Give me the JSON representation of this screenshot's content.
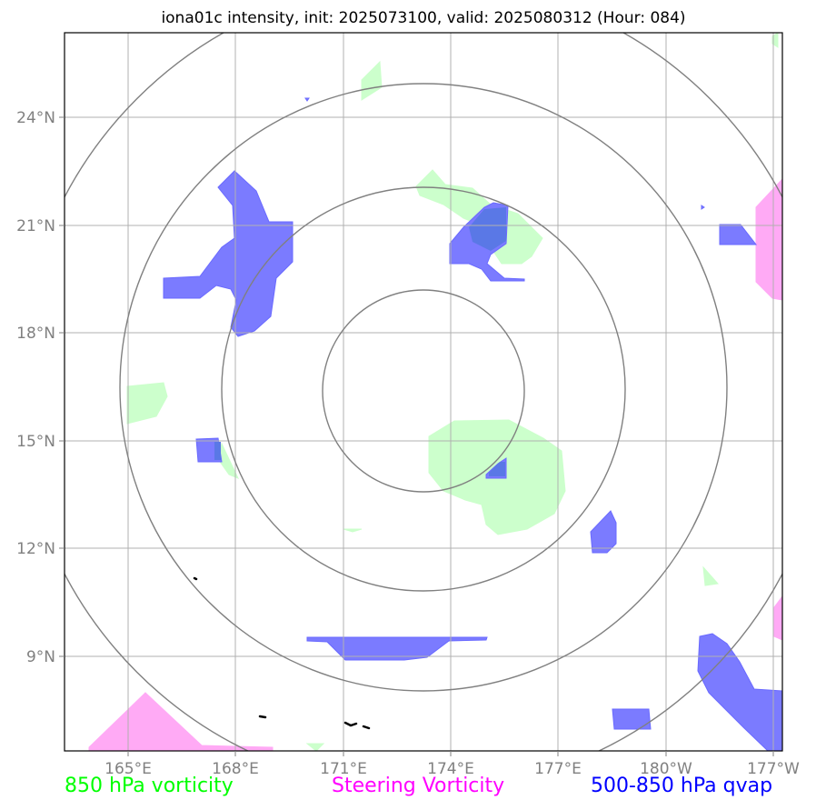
{
  "title": "iona01c intensity, init: 2025073100, valid: 2025080312 (Hour: 084)",
  "axes": {
    "lon_ticks": [
      "165°E",
      "168°E",
      "171°E",
      "174°E",
      "177°E",
      "180°W",
      "177°W"
    ],
    "lat_ticks": [
      "24°N",
      "21°N",
      "18°N",
      "15°N",
      "12°N",
      "9°N"
    ]
  },
  "legend": [
    {
      "label": "850 hPa vorticity",
      "color": "#00ff00"
    },
    {
      "label": "Steering Vorticity",
      "color": "#ff00ff"
    },
    {
      "label": "500-850 hPa qvap",
      "color": "#0000ff"
    }
  ],
  "layer_colors": {
    "vorticity_850": "#ccffcc",
    "steering_vorticity": "#ffaaf5",
    "qvap": "#7b7bff",
    "range_rings": "#808080",
    "gridlines": "#b0b0b0",
    "coastline": "#000000"
  }
}
